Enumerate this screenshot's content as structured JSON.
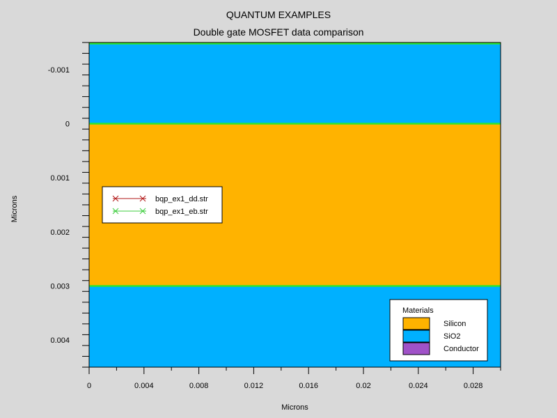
{
  "title": "QUANTUM EXAMPLES",
  "subtitle": "Double gate MOSFET data comparison",
  "chart_data": {
    "type": "area",
    "xlabel": "Microns",
    "ylabel": "Microns",
    "xlim": [
      0,
      0.03
    ],
    "ylim": [
      -0.0015,
      0.0045
    ],
    "y_inverted": true,
    "x_ticks": [
      0,
      0.004,
      0.008,
      0.012,
      0.016,
      0.02,
      0.024,
      0.028
    ],
    "x_tick_labels": [
      "0",
      "0.004",
      "0.008",
      "0.012",
      "0.016",
      "0.02",
      "0.024",
      "0.028"
    ],
    "y_ticks": [
      -0.001,
      0,
      0.001,
      0.002,
      0.003,
      0.004
    ],
    "y_tick_labels": [
      "-0.001",
      "0",
      "0.001",
      "0.002",
      "0.003",
      "0.004"
    ],
    "regions": [
      {
        "material": "Conductor",
        "y0": -0.0015,
        "y1": -0.00148,
        "color": "#a052c8"
      },
      {
        "material": "SiO2",
        "y0": -0.00148,
        "y1": 0,
        "color": "#00b0ff"
      },
      {
        "material": "Silicon",
        "y0": 0,
        "y1": 0.003,
        "color": "#ffb300"
      },
      {
        "material": "SiO2",
        "y0": 0.003,
        "y1": 0.0045,
        "color": "#00b0ff"
      }
    ],
    "interfaces": [
      -0.00148,
      0,
      0.003
    ],
    "interface_color": "#2ee52e",
    "series_legend": [
      {
        "name": "bqp_ex1_dd.str",
        "color": "#b21818"
      },
      {
        "name": "bqp_ex1_eb.str",
        "color": "#3ccc3c"
      }
    ],
    "materials_legend": {
      "title": "Materials",
      "items": [
        {
          "name": "Silicon",
          "color": "#ffb300"
        },
        {
          "name": "SiO2",
          "color": "#00b0ff"
        },
        {
          "name": "Conductor",
          "color": "#a052c8"
        }
      ]
    }
  }
}
